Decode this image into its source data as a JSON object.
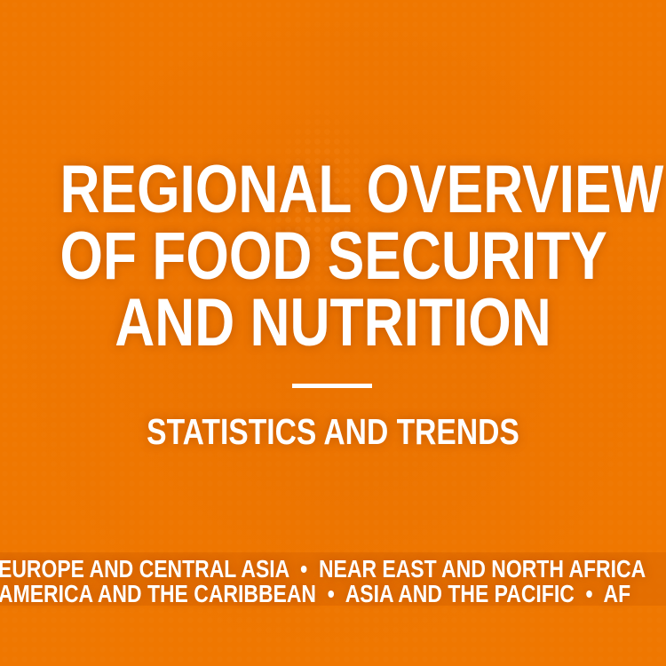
{
  "title_lines": [
    "REGIONAL OVERVIEW",
    "OF FOOD SECURITY",
    "AND NUTRITION"
  ],
  "subtitle": "STATISTICS AND TRENDS",
  "regions_line_1": "EUROPE AND CENTRAL ASIA  •  NEAR EAST AND NORTH AFRICA",
  "regions_line_2": "AMERICA AND THE CARIBBEAN  •  ASIA AND THE PACIFIC  •  AF",
  "colors": {
    "background": "#ef7700",
    "text": "#ffffff"
  }
}
